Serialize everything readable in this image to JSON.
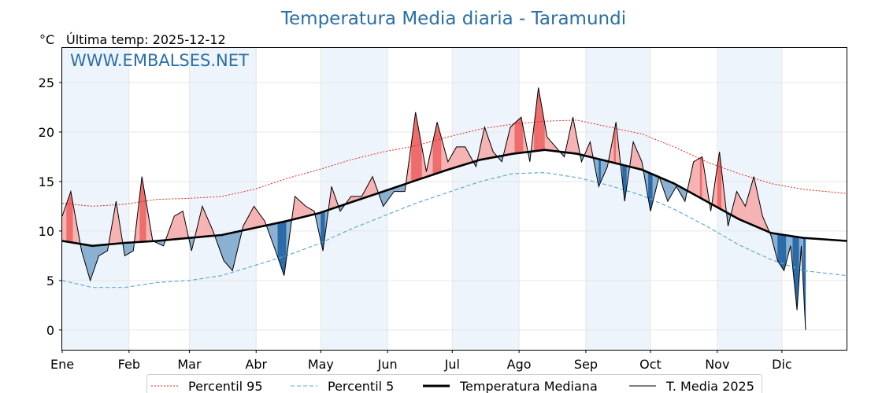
{
  "chart_data": {
    "type": "line",
    "title": "Temperatura Media diaria - Taramundi",
    "unit_label": "°C",
    "subtitle": "Última temp: 2025-12-12",
    "watermark": "WWW.EMBALSES.NET",
    "xlim": [
      1,
      365
    ],
    "ylim": [
      -2,
      28.5
    ],
    "y_ticks": [
      0,
      5,
      10,
      15,
      20,
      25
    ],
    "month_starts": [
      1,
      32,
      60,
      91,
      121,
      152,
      182,
      213,
      244,
      274,
      305,
      335
    ],
    "month_labels": [
      "Ene",
      "Feb",
      "Mar",
      "Abr",
      "May",
      "Jun",
      "Jul",
      "Ago",
      "Sep",
      "Oct",
      "Nov",
      "Dic"
    ],
    "grid": true,
    "legend_position": "bottom",
    "colors": {
      "p95": "#e8241c",
      "p5": "#5eadd0",
      "median": "#000000",
      "year": "#000000",
      "above_fill": "#f6b3b3",
      "below_fill": "#8ab0d2",
      "above_fill_strong": "#ee6c6c",
      "below_fill_strong": "#2a6aa8",
      "band": "#eef4fb",
      "title": "#2b6fa5"
    },
    "series": [
      {
        "name": "Percentil 95",
        "style": "dotted",
        "x": [
          1,
          15,
          30,
          45,
          60,
          75,
          90,
          105,
          120,
          135,
          150,
          165,
          180,
          195,
          210,
          225,
          240,
          255,
          270,
          285,
          300,
          315,
          330,
          345,
          365
        ],
        "values": [
          12.8,
          12.5,
          12.7,
          13.2,
          13.3,
          13.5,
          14.2,
          15.3,
          16.2,
          17.2,
          18.0,
          18.6,
          19.5,
          20.3,
          20.8,
          21.1,
          21.2,
          20.5,
          19.8,
          18.5,
          17.0,
          15.8,
          14.8,
          14.2,
          13.8
        ]
      },
      {
        "name": "Percentil 5",
        "style": "dashed",
        "x": [
          1,
          15,
          30,
          45,
          60,
          75,
          90,
          105,
          120,
          135,
          150,
          165,
          180,
          195,
          210,
          225,
          240,
          255,
          270,
          285,
          300,
          315,
          330,
          345,
          365
        ],
        "values": [
          5.0,
          4.3,
          4.3,
          4.8,
          5.0,
          5.5,
          6.5,
          7.5,
          8.7,
          10.2,
          11.5,
          12.8,
          13.9,
          15.0,
          15.8,
          15.9,
          15.4,
          14.6,
          13.6,
          12.2,
          10.5,
          8.6,
          7.1,
          6.0,
          5.5
        ]
      },
      {
        "name": "Temperatura Mediana",
        "style": "bold",
        "x": [
          1,
          15,
          30,
          45,
          60,
          75,
          90,
          105,
          120,
          135,
          150,
          165,
          180,
          195,
          210,
          225,
          240,
          255,
          270,
          285,
          300,
          315,
          330,
          345,
          365
        ],
        "values": [
          9.0,
          8.5,
          8.8,
          9.0,
          9.3,
          9.6,
          10.3,
          11.0,
          11.8,
          12.9,
          14.0,
          15.1,
          16.2,
          17.2,
          17.8,
          18.2,
          17.8,
          17.0,
          16.2,
          14.8,
          13.0,
          11.2,
          9.8,
          9.3,
          9.0
        ]
      },
      {
        "name": "T. Media 2025",
        "style": "thin",
        "x": [
          1,
          5,
          10,
          14,
          18,
          22,
          26,
          30,
          34,
          38,
          43,
          48,
          53,
          57,
          61,
          66,
          71,
          76,
          80,
          85,
          90,
          95,
          100,
          104,
          109,
          114,
          118,
          122,
          126,
          130,
          135,
          140,
          145,
          150,
          155,
          160,
          165,
          170,
          175,
          180,
          184,
          188,
          193,
          197,
          201,
          205,
          209,
          214,
          218,
          222,
          226,
          230,
          234,
          238,
          242,
          246,
          250,
          254,
          258,
          262,
          266,
          270,
          274,
          278,
          282,
          286,
          290,
          294,
          298,
          302,
          306,
          310,
          314,
          318,
          322,
          326,
          330,
          333,
          336,
          339,
          342,
          344,
          346
        ],
        "values": [
          11.5,
          14,
          8,
          5,
          7.5,
          8,
          13,
          7.5,
          8,
          15.5,
          9,
          8.5,
          11.5,
          12,
          8,
          12.5,
          10,
          7,
          6,
          10.5,
          12.5,
          11,
          8,
          5.5,
          13.5,
          12.5,
          12,
          8,
          14.5,
          12,
          13.5,
          13.5,
          15.5,
          12.5,
          14,
          14,
          22,
          16,
          21,
          17,
          18.5,
          18.5,
          16.5,
          20.5,
          18,
          17,
          20.5,
          21.5,
          17,
          24.5,
          19.5,
          18.5,
          17.5,
          21.5,
          17,
          19,
          14.5,
          16.5,
          21,
          13,
          19,
          17,
          12,
          15.5,
          13,
          14.5,
          13,
          17,
          17.5,
          12,
          18,
          10.5,
          14,
          12.5,
          15.5,
          11.5,
          9.5,
          7,
          6,
          8.5,
          2,
          8.5,
          0
        ]
      }
    ]
  }
}
